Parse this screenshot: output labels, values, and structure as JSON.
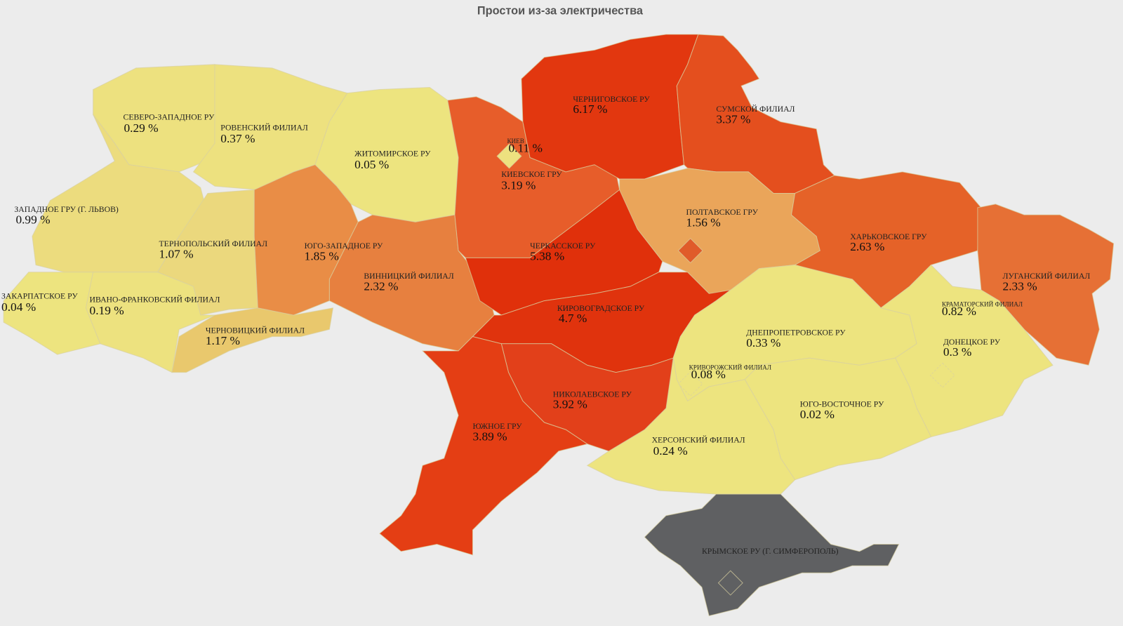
{
  "title": "Простои из-за электричества",
  "regions": [
    {
      "name": "СЕВЕРО-ЗАПАДНОЕ РУ",
      "value": 0.29,
      "value_label": "0.29 %",
      "color": "#ede17f"
    },
    {
      "name": "РОВЕНСКИЙ ФИЛИАЛ",
      "value": 0.37,
      "value_label": "0.37 %",
      "color": "#ede17f"
    },
    {
      "name": "ЖИТОМИРСКОЕ РУ",
      "value": 0.05,
      "value_label": "0.05 %",
      "color": "#ede47f"
    },
    {
      "name": "ЗАПАДНОЕ ГРУ (Г. ЛЬВОВ)",
      "value": 0.99,
      "value_label": "0.99 %",
      "color": "#ecdc7e"
    },
    {
      "name": "ТЕРНОПОЛЬСКИЙ ФИЛИАЛ",
      "value": 1.07,
      "value_label": "1.07 %",
      "color": "#ebd87d"
    },
    {
      "name": "ЗАКАРПАТСКОЕ РУ",
      "value": 0.04,
      "value_label": "0.04 %",
      "color": "#ede47f"
    },
    {
      "name": "ИВАНО-ФРАНКОВСКИЙ ФИЛИАЛ",
      "value": 0.19,
      "value_label": "0.19 %",
      "color": "#ede27f"
    },
    {
      "name": "ЧЕРНОВИЦКИЙ ФИЛИАЛ",
      "value": 1.17,
      "value_label": "1.17 %",
      "color": "#e9c86d"
    },
    {
      "name": "ЮГО-ЗАПАДНОЕ РУ",
      "value": 1.85,
      "value_label": "1.85 %",
      "color": "#e98d46"
    },
    {
      "name": "ВИННИЦКИЙ ФИЛИАЛ",
      "value": 2.32,
      "value_label": "2.32 %",
      "color": "#e7803f"
    },
    {
      "name": "КИЕВСКОЕ ГРУ",
      "value": 3.19,
      "value_label": "3.19 %",
      "color": "#e75d2a"
    },
    {
      "name": "КИЕВ",
      "value": 0.11,
      "value_label": "0.11 %",
      "color": "#ede17f"
    },
    {
      "name": "ЧЕРНИГОВСКОЕ РУ",
      "value": 6.17,
      "value_label": "6.17 %",
      "color": "#e2370f"
    },
    {
      "name": "СУМСКОЙ ФИЛИАЛ",
      "value": 3.37,
      "value_label": "3.37 %",
      "color": "#e44f1e"
    },
    {
      "name": "ПОЛТАВСКОЕ ГРУ",
      "value": 1.56,
      "value_label": "1.56 %",
      "color": "#eaa55a"
    },
    {
      "name": "ХАРЬКОВСКОЕ ГРУ",
      "value": 2.63,
      "value_label": "2.63 %",
      "color": "#e56228"
    },
    {
      "name": "ЛУГАНСКИЙ ФИЛИАЛ",
      "value": 2.33,
      "value_label": "2.33 %",
      "color": "#e67035"
    },
    {
      "name": "ЧЕРКАССКОЕ РУ",
      "value": 5.38,
      "value_label": "5.38 %",
      "color": "#e0300b"
    },
    {
      "name": "КИРОВОГРАДСКОЕ РУ",
      "value": 4.7,
      "value_label": "4.7 %",
      "color": "#e0330d"
    },
    {
      "name": "ДНЕПРОПЕТРОВСКОЕ РУ",
      "value": 0.33,
      "value_label": "0.33 %",
      "color": "#ede47f"
    },
    {
      "name": "КРИВОРОЖСКИЙ ФИЛИАЛ",
      "value": 0.08,
      "value_label": "0.08 %",
      "color": "#ede47f"
    },
    {
      "name": "КРАМАТОРСКИЙ ФИЛИАЛ",
      "value": 0.82,
      "value_label": "0.82 %",
      "color": "#ede47f"
    },
    {
      "name": "ДОНЕЦКОЕ РУ",
      "value": 0.3,
      "value_label": "0.3 %",
      "color": "#ede47f"
    },
    {
      "name": "ЮГО-ВОСТОЧНОЕ РУ",
      "value": 0.02,
      "value_label": "0.02 %",
      "color": "#ede47f"
    },
    {
      "name": "ХЕРСОНСКИЙ ФИЛИАЛ",
      "value": 0.24,
      "value_label": "0.24 %",
      "color": "#ede47f"
    },
    {
      "name": "НИКОЛАЕВСКОЕ РУ",
      "value": 3.92,
      "value_label": "3.92 %",
      "color": "#e2401a"
    },
    {
      "name": "ЮЖНОЕ ГРУ",
      "value": 3.89,
      "value_label": "3.89 %",
      "color": "#e43e14"
    },
    {
      "name": "КРЫМСКОЕ РУ (Г. СИМФЕРОПОЛЬ)",
      "color": "#5f6062"
    }
  ]
}
